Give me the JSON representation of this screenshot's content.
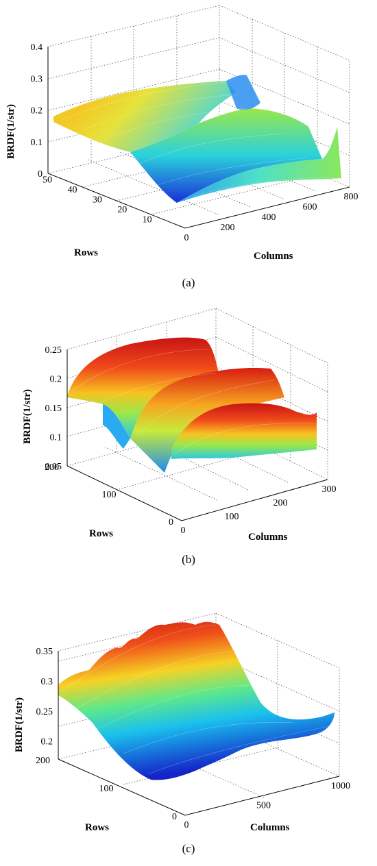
{
  "chart_data": [
    {
      "type": "surface3d",
      "caption": "(a)",
      "zlabel": "BRDF(1/str)",
      "xlabel": "Columns",
      "ylabel": "Rows",
      "z_ticks": [
        "0",
        "0.1",
        "0.2",
        "0.3",
        "0.4"
      ],
      "x_ticks": [
        "0",
        "200",
        "400",
        "600",
        "800"
      ],
      "y_ticks": [
        "10",
        "20",
        "30",
        "40",
        "50"
      ],
      "zlim": [
        0,
        0.4
      ],
      "xlim": [
        0,
        800
      ],
      "ylim": [
        0,
        55
      ],
      "colormap": "jet",
      "grid": true
    },
    {
      "type": "surface3d",
      "caption": "(b)",
      "zlabel": "BRDF(1/str)",
      "xlabel": "Columns",
      "ylabel": "Rows",
      "z_ticks": [
        "0.05",
        "0.1",
        "0.15",
        "0.2",
        "0.25"
      ],
      "x_ticks": [
        "0",
        "100",
        "200",
        "300"
      ],
      "y_ticks": [
        "0",
        "100",
        "200"
      ],
      "zlim": [
        0.05,
        0.25
      ],
      "xlim": [
        0,
        300
      ],
      "ylim": [
        0,
        200
      ],
      "colormap": "jet",
      "grid": true
    },
    {
      "type": "surface3d",
      "caption": "(c)",
      "zlabel": "BRDF(1/str)",
      "xlabel": "Columns",
      "ylabel": "Rows",
      "z_ticks": [
        "0.2",
        "0.25",
        "0.3",
        "0.35"
      ],
      "x_ticks": [
        "0",
        "500",
        "1000"
      ],
      "y_ticks": [
        "0",
        "100",
        "200"
      ],
      "zlim": [
        0.17,
        0.35
      ],
      "xlim": [
        0,
        1000
      ],
      "ylim": [
        0,
        200
      ],
      "colormap": "jet",
      "grid": true
    }
  ]
}
